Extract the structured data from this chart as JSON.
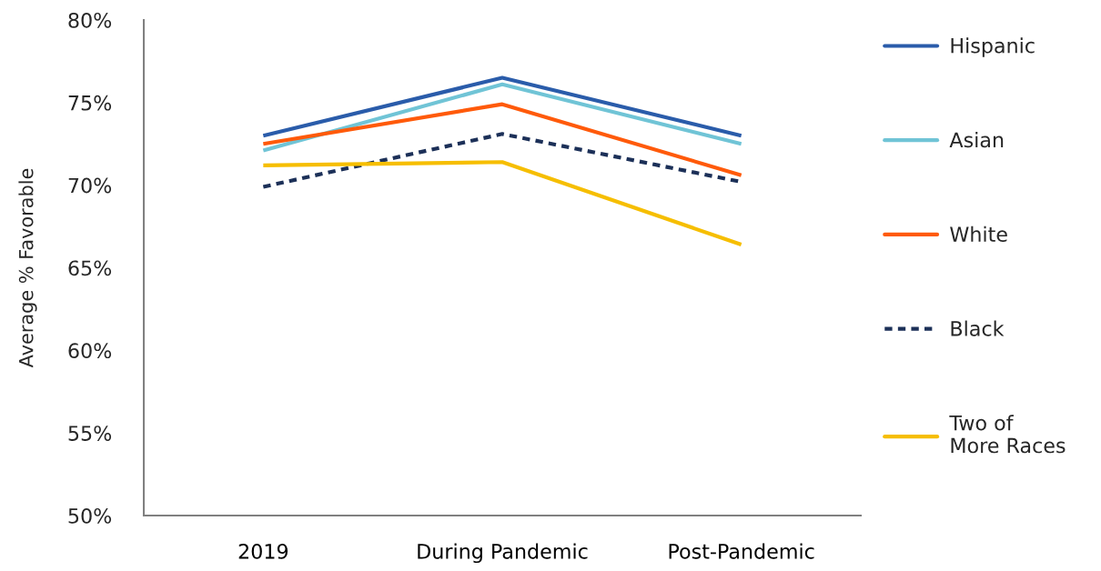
{
  "chart_data": {
    "type": "line",
    "ylabel": "Average % Favorable",
    "categories": [
      "2019",
      "During Pandemic",
      "Post-Pandemic"
    ],
    "series": [
      {
        "name": "Hispanic",
        "color": "#2a5caa",
        "values": [
          73.0,
          76.5,
          73.0
        ]
      },
      {
        "name": "Asian",
        "color": "#70c4d6",
        "values": [
          72.1,
          76.1,
          72.5
        ]
      },
      {
        "name": "White",
        "color": "#ff5a0a",
        "values": [
          72.5,
          74.9,
          70.6
        ]
      },
      {
        "name": "Black",
        "color": "#1c3058",
        "values": [
          69.9,
          73.1,
          70.2
        ],
        "line_style": "dotted"
      },
      {
        "name": "Two of\nMore Races",
        "color": "#f6be00",
        "values": [
          71.2,
          71.4,
          66.4
        ]
      }
    ],
    "ylim": [
      50,
      80
    ],
    "yticks": [
      {
        "value": 50,
        "label": "50%"
      },
      {
        "value": 55,
        "label": "55%"
      },
      {
        "value": 60,
        "label": "60%"
      },
      {
        "value": 65,
        "label": "65%"
      },
      {
        "value": 70,
        "label": "70%"
      },
      {
        "value": 75,
        "label": "75%"
      },
      {
        "value": 80,
        "label": "80%"
      }
    ],
    "grid": false,
    "legend": "right",
    "marker": "none",
    "line_style": "solid"
  }
}
